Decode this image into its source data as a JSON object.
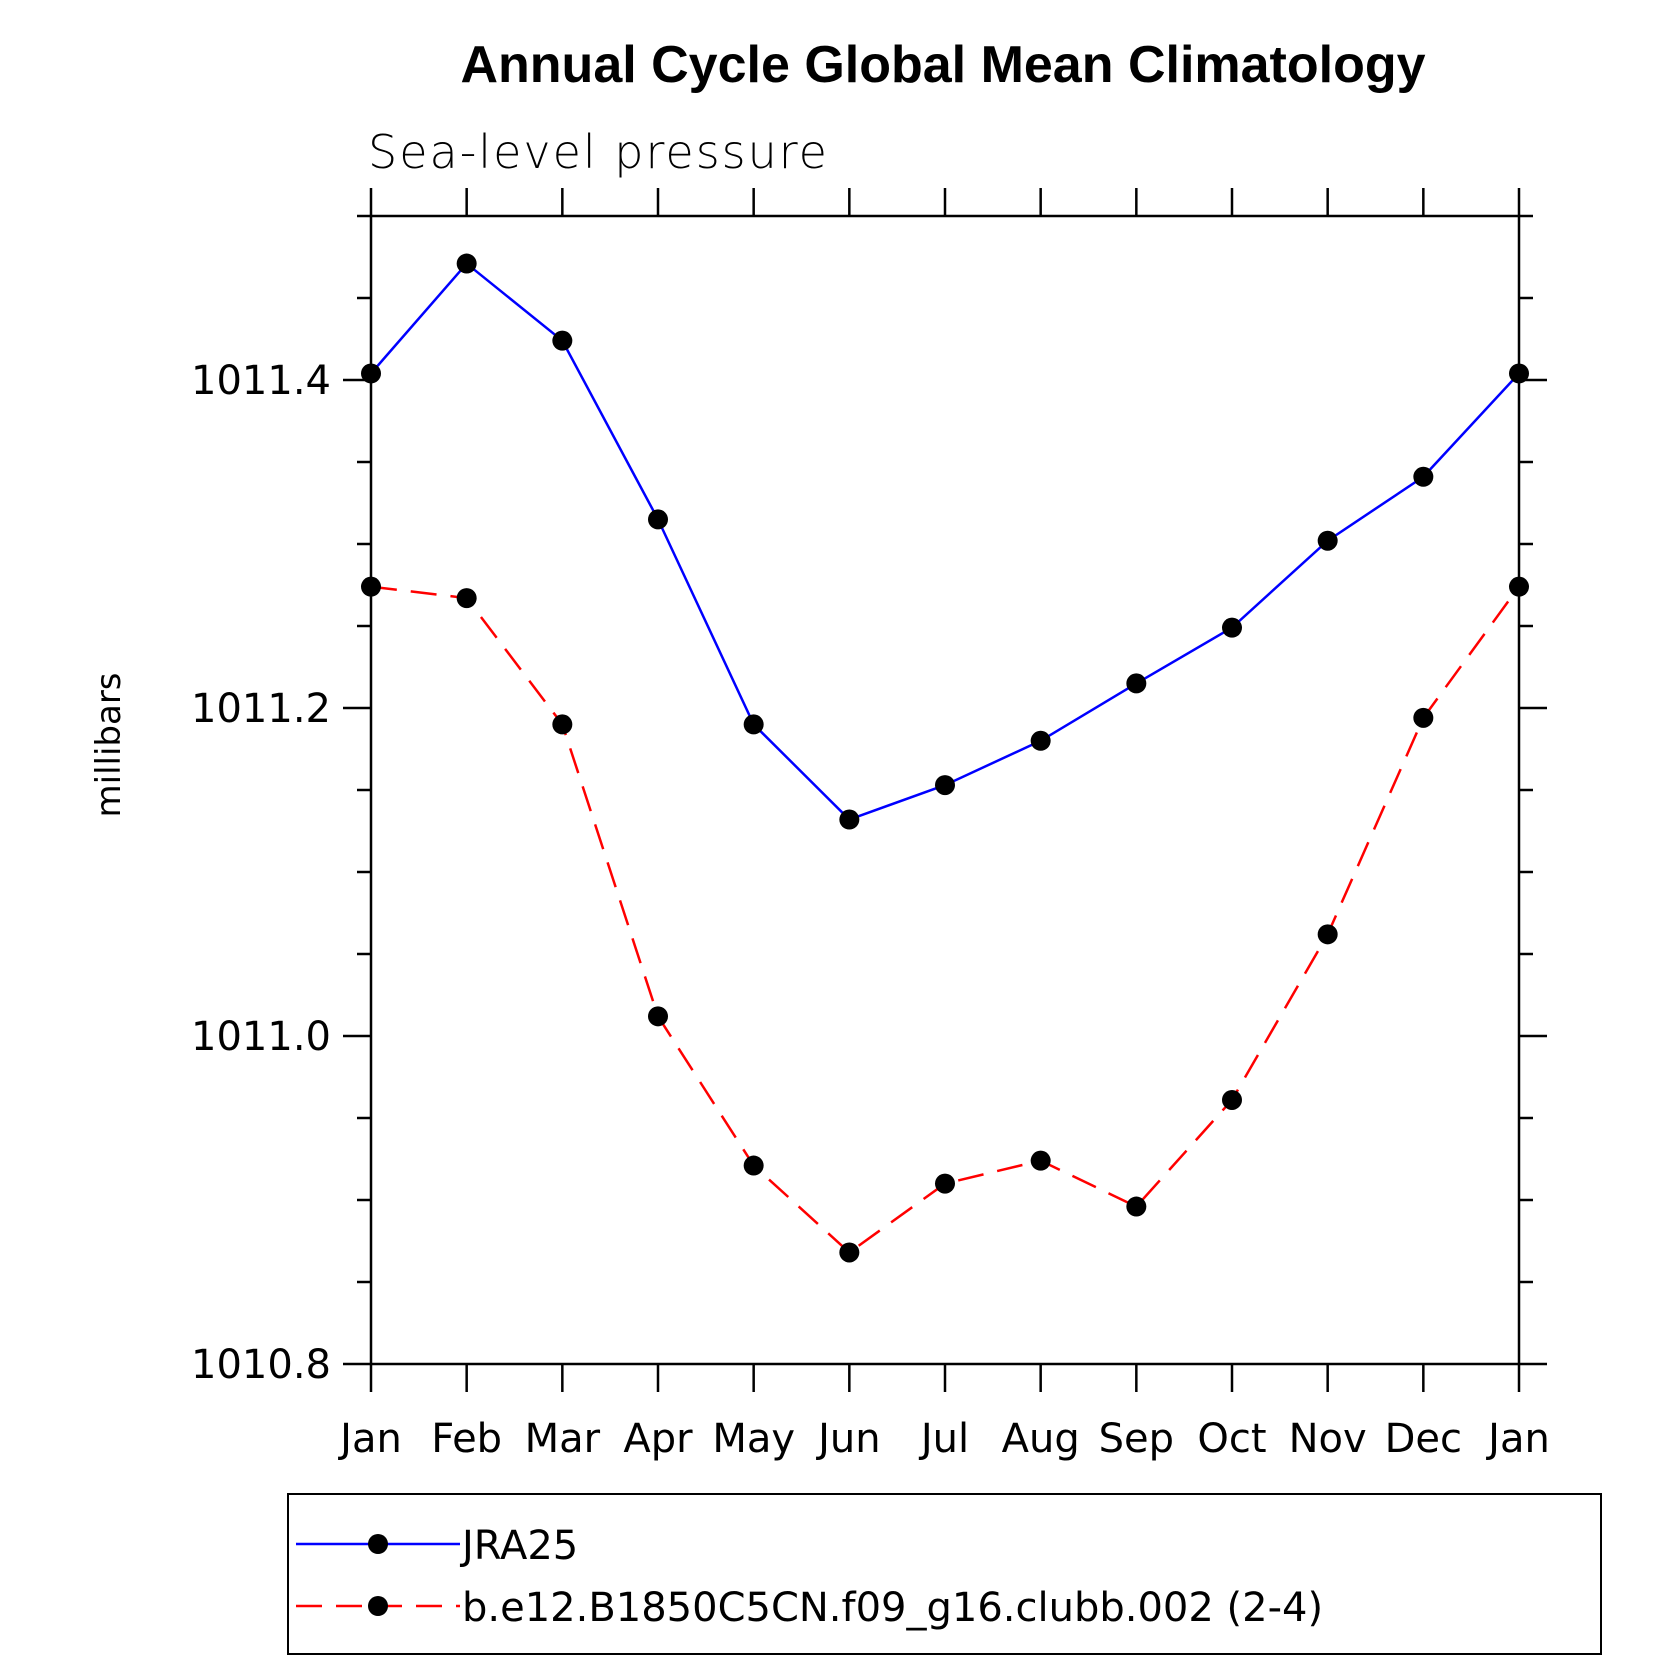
{
  "chart_data": {
    "type": "line",
    "title": "Annual Cycle Global Mean Climatology",
    "subtitle": "Sea-level pressure",
    "ylabel": "millibars",
    "xlabel": "",
    "categories": [
      "Jan",
      "Feb",
      "Mar",
      "Apr",
      "May",
      "Jun",
      "Jul",
      "Aug",
      "Sep",
      "Oct",
      "Nov",
      "Dec",
      "Jan"
    ],
    "ylim": [
      1010.8,
      1011.5
    ],
    "yticks": [
      "1010.8",
      "1011.0",
      "1011.2",
      "1011.4"
    ],
    "yticks_values": [
      1010.8,
      1011.0,
      1011.2,
      1011.4
    ],
    "grid": false,
    "legend_position": "bottom",
    "series": [
      {
        "name": "JRA25",
        "color": "#0000ff",
        "dash": "solid",
        "values": [
          1011.404,
          1011.471,
          1011.424,
          1011.315,
          1011.19,
          1011.132,
          1011.153,
          1011.18,
          1011.215,
          1011.249,
          1011.302,
          1011.341,
          1011.404
        ]
      },
      {
        "name": "b.e12.B1850C5CN.f09_g16.clubb.002 (2-4)",
        "color": "#ff0000",
        "dash": "dashed",
        "values": [
          1011.274,
          1011.267,
          1011.19,
          1011.012,
          1010.921,
          1010.868,
          1010.91,
          1010.924,
          1010.896,
          1010.961,
          1011.062,
          1011.194,
          1011.274
        ]
      }
    ]
  }
}
